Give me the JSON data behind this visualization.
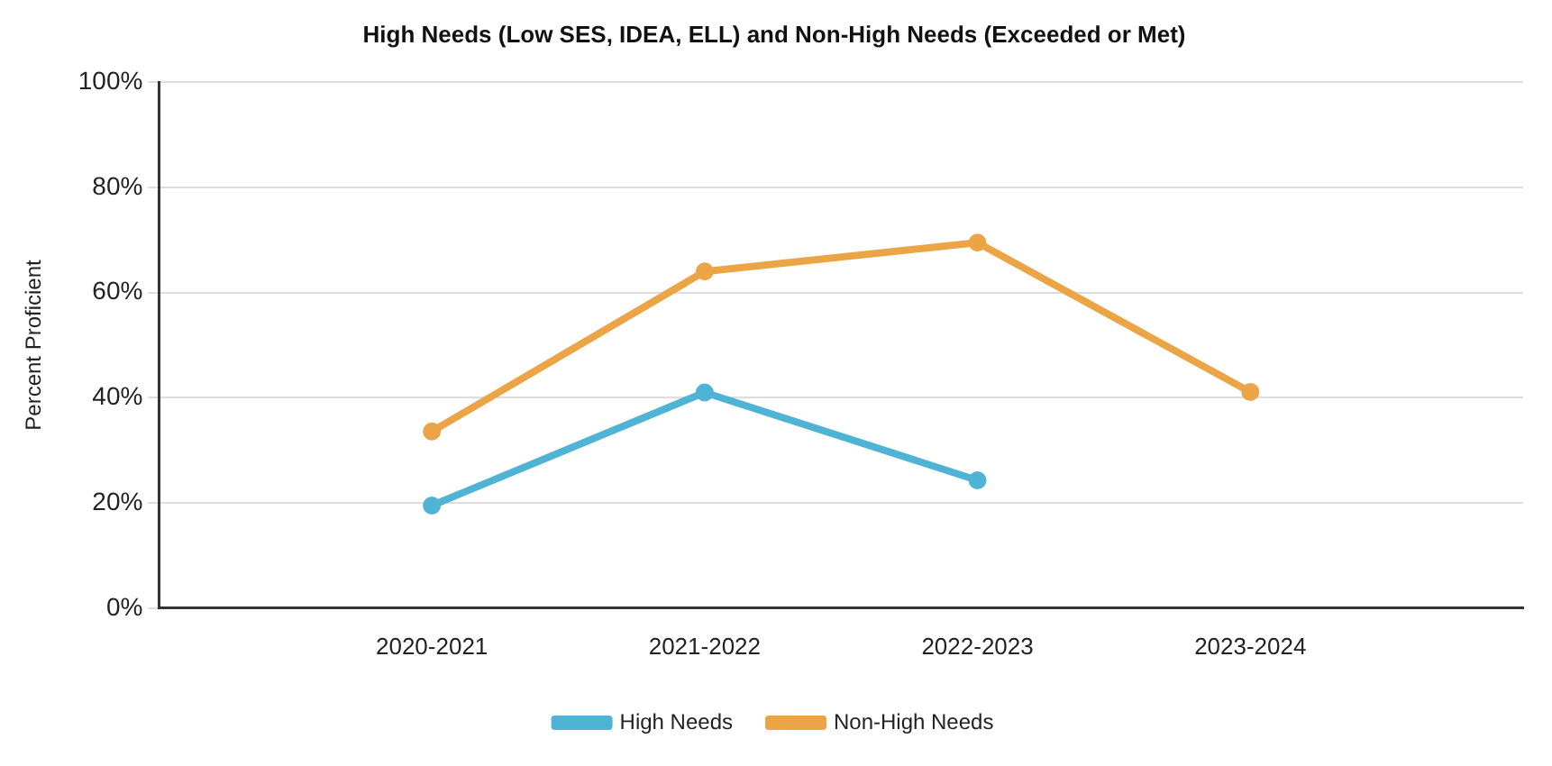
{
  "chart_data": {
    "type": "line",
    "title": "High Needs (Low SES, IDEA, ELL) and Non-High Needs (Exceeded or Met)",
    "ylabel": "Percent Proficient",
    "categories": [
      null,
      "2020-2021",
      "2021-2022",
      "2022-2023",
      "2023-2024",
      null
    ],
    "series": [
      {
        "name": "High Needs",
        "color": "#4fb3d6",
        "values": [
          null,
          19.5,
          41,
          24.3,
          null,
          null
        ]
      },
      {
        "name": "Non-High Needs",
        "color": "#eba446",
        "values": [
          null,
          33.6,
          64,
          69.5,
          41.1,
          null
        ]
      }
    ],
    "ylim": [
      0,
      100
    ],
    "yticks": [
      {
        "value": 0,
        "label": "0%"
      },
      {
        "value": 20,
        "label": "20%"
      },
      {
        "value": 40,
        "label": "40%"
      },
      {
        "value": 60,
        "label": "60%"
      },
      {
        "value": 80,
        "label": "80%"
      },
      {
        "value": 100,
        "label": "100%"
      }
    ],
    "grid": "y",
    "legend": "bottom",
    "marker": "circle",
    "line_style": "solid"
  }
}
